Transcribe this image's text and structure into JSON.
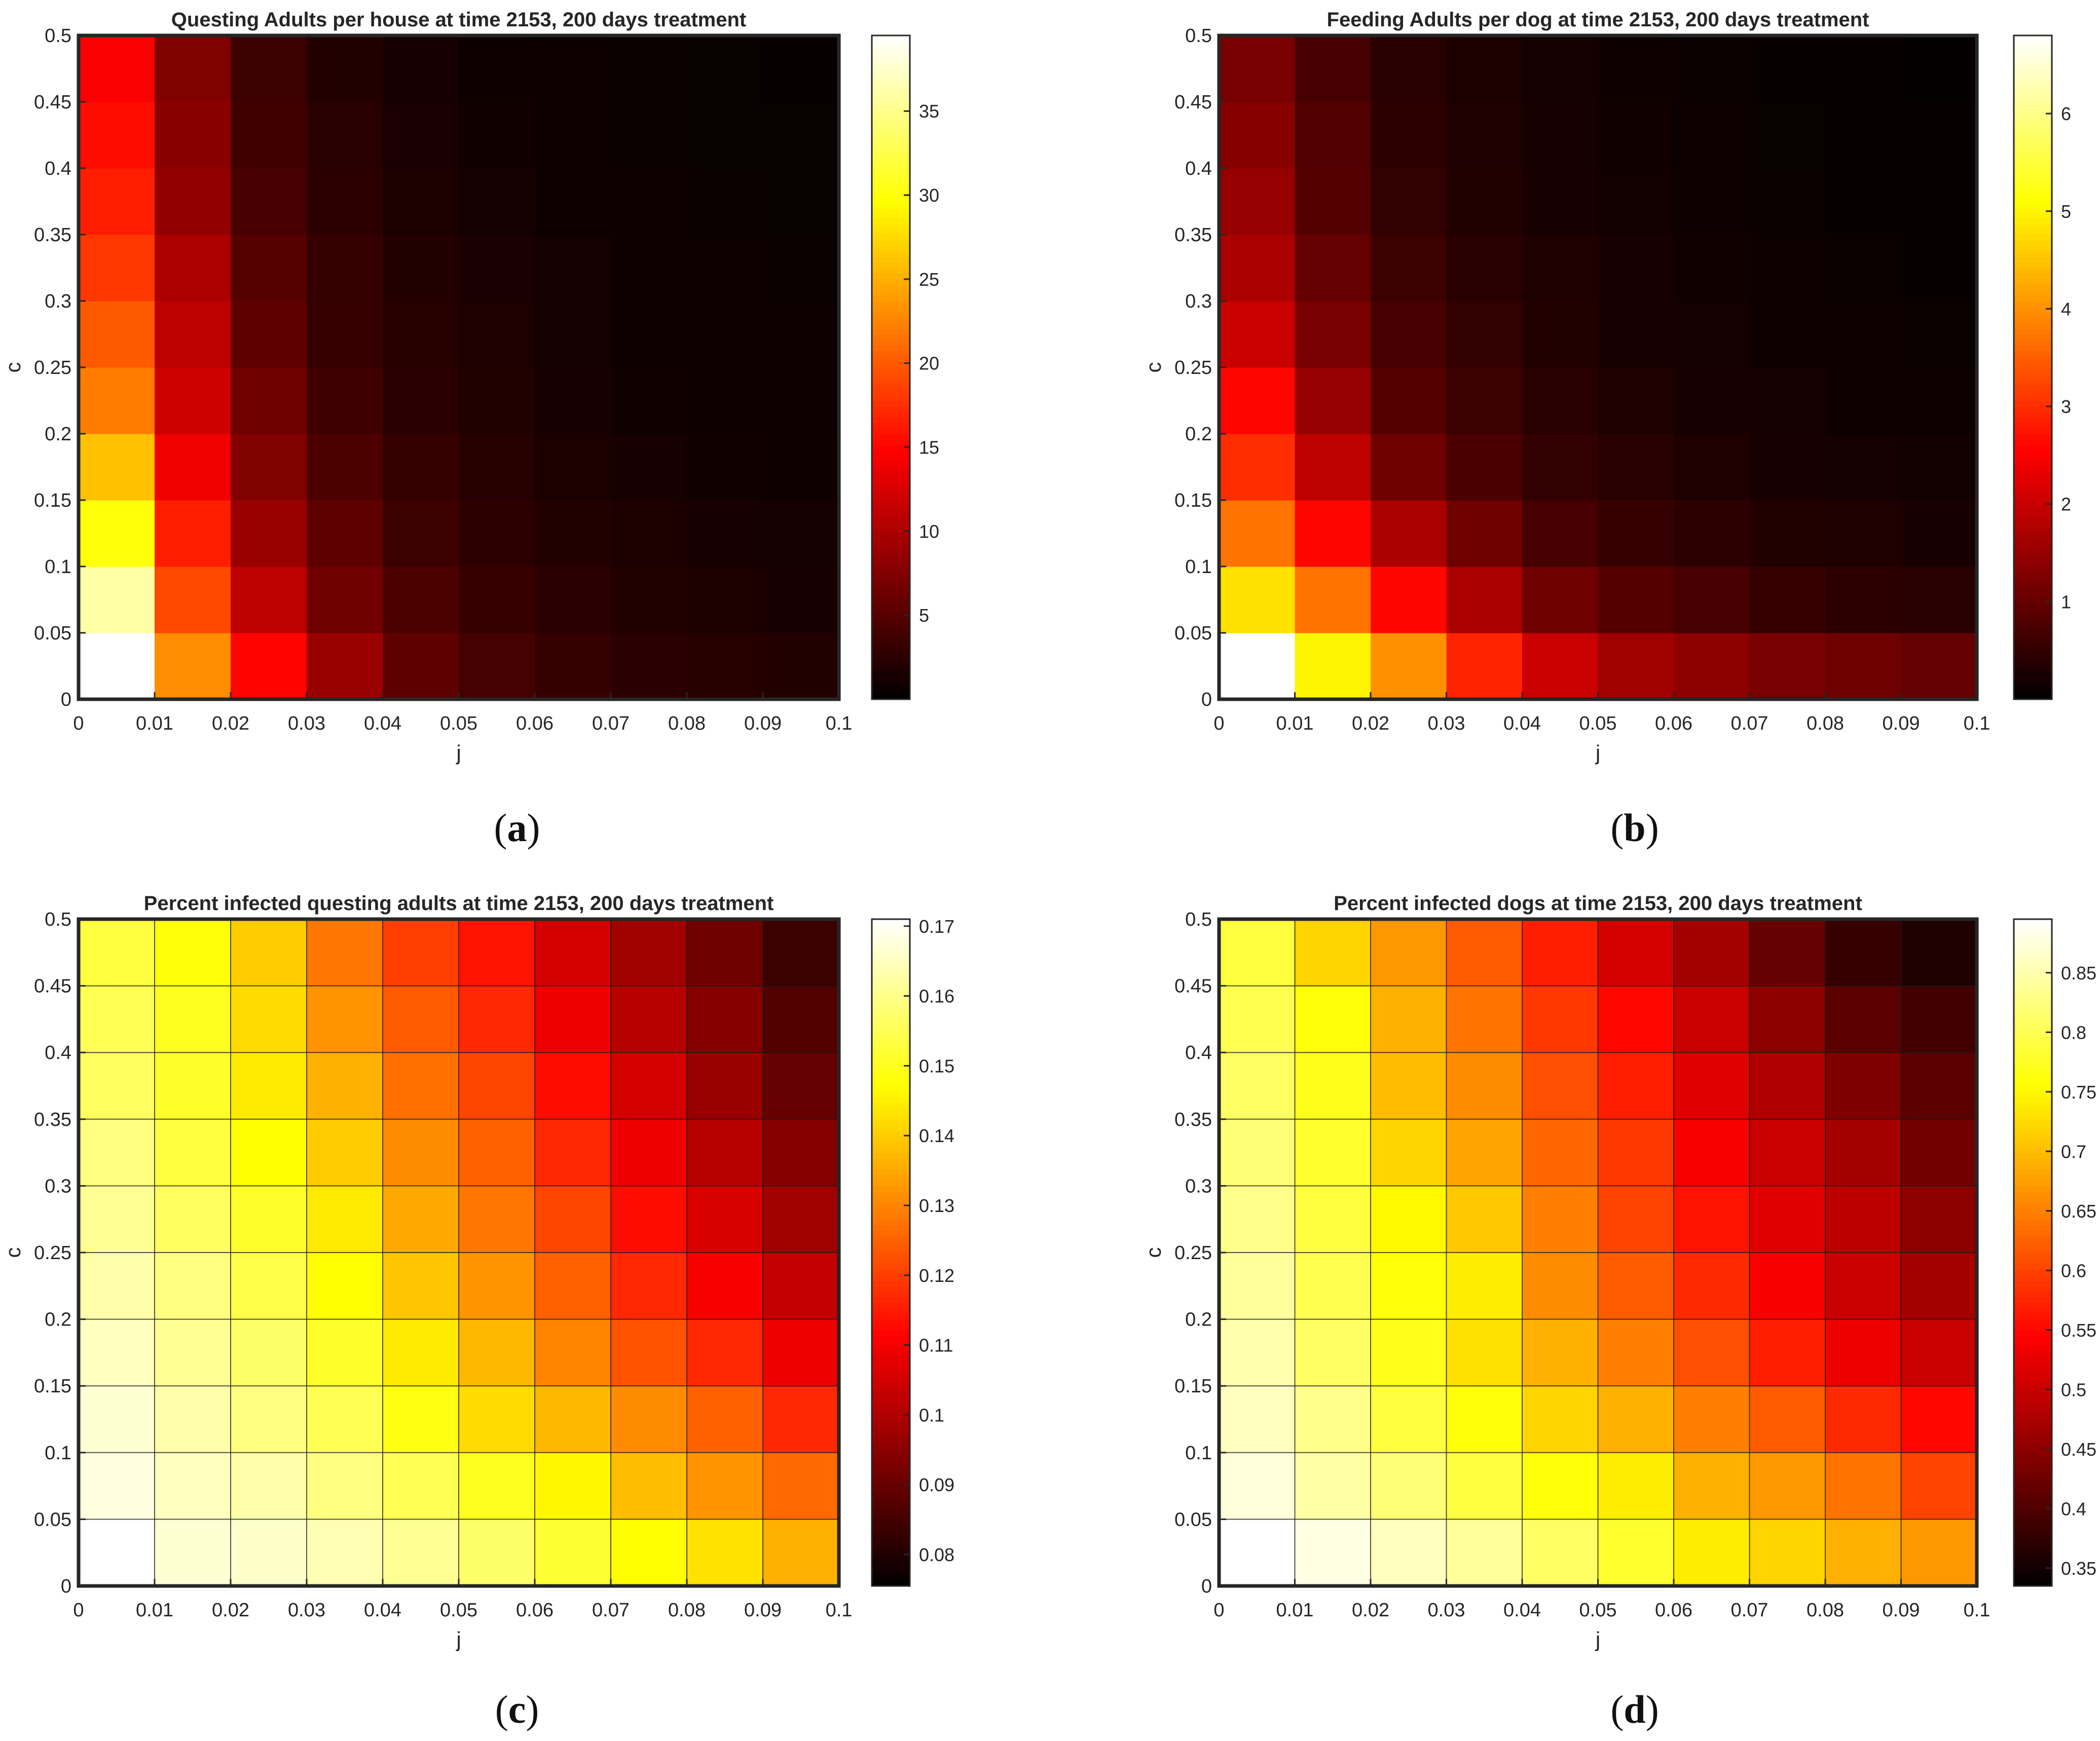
{
  "chart_data": [
    {
      "type": "heatmap",
      "panel_label": "a",
      "title": "Questing Adults per house at time 2153, 200 days treatment",
      "xlabel": "j",
      "ylabel": "c",
      "x_ticks": [
        "0",
        "0.01",
        "0.02",
        "0.03",
        "0.04",
        "0.05",
        "0.06",
        "0.07",
        "0.08",
        "0.09",
        "0.1"
      ],
      "y_ticks": [
        "0",
        "0.05",
        "0.1",
        "0.15",
        "0.2",
        "0.25",
        "0.3",
        "0.35",
        "0.4",
        "0.45",
        "0.5"
      ],
      "xlim": [
        0,
        0.1
      ],
      "ylim": [
        0,
        0.5
      ],
      "colormap": "hot",
      "clim": [
        0,
        39.5
      ],
      "colorbar_ticks": [
        5,
        10,
        15,
        20,
        25,
        30,
        35
      ],
      "colorbar_ticklabels": [
        "5",
        "10",
        "15",
        "20",
        "25",
        "30",
        "35"
      ],
      "gridlines": false,
      "values": [
        [
          39.5,
          23.0,
          15.0,
          9.0,
          5.5,
          4.0,
          3.0,
          2.5,
          2.2,
          2.0
        ],
        [
          36.0,
          19.0,
          11.0,
          6.5,
          4.5,
          3.2,
          2.5,
          2.0,
          1.6,
          1.4
        ],
        [
          30.0,
          16.5,
          9.0,
          5.5,
          3.5,
          2.6,
          2.0,
          1.6,
          1.3,
          1.1
        ],
        [
          26.0,
          14.0,
          7.5,
          4.5,
          3.0,
          2.2,
          1.6,
          1.3,
          1.0,
          0.9
        ],
        [
          22.0,
          12.0,
          6.5,
          3.6,
          2.5,
          1.9,
          1.4,
          1.0,
          0.9,
          0.8
        ],
        [
          20.0,
          11.0,
          5.5,
          3.2,
          2.2,
          1.7,
          1.2,
          0.9,
          0.8,
          0.7
        ],
        [
          18.0,
          10.0,
          5.0,
          3.0,
          2.0,
          1.5,
          1.1,
          0.9,
          0.7,
          0.6
        ],
        [
          16.5,
          8.5,
          4.2,
          2.6,
          1.6,
          1.2,
          0.9,
          0.7,
          0.6,
          0.5
        ],
        [
          15.5,
          8.0,
          3.8,
          2.3,
          1.5,
          1.0,
          0.8,
          0.6,
          0.5,
          0.5
        ],
        [
          14.5,
          7.5,
          3.5,
          2.0,
          1.3,
          0.9,
          0.7,
          0.6,
          0.5,
          0.4
        ]
      ]
    },
    {
      "type": "heatmap",
      "panel_label": "b",
      "title": "Feeding Adults per dog at time 2153, 200 days treatment",
      "xlabel": "j",
      "ylabel": "c",
      "x_ticks": [
        "0",
        "0.01",
        "0.02",
        "0.03",
        "0.04",
        "0.05",
        "0.06",
        "0.07",
        "0.08",
        "0.09",
        "0.1"
      ],
      "y_ticks": [
        "0",
        "0.05",
        "0.1",
        "0.15",
        "0.2",
        "0.25",
        "0.3",
        "0.35",
        "0.4",
        "0.45",
        "0.5"
      ],
      "xlim": [
        0,
        0.1
      ],
      "ylim": [
        0,
        0.5
      ],
      "colormap": "hot",
      "clim": [
        0,
        6.8
      ],
      "colorbar_ticks": [
        1,
        2,
        3,
        4,
        5,
        6
      ],
      "colorbar_ticklabels": [
        "1",
        "2",
        "3",
        "4",
        "5",
        "6"
      ],
      "gridlines": false,
      "values": [
        [
          6.8,
          5.0,
          4.0,
          2.9,
          2.0,
          1.6,
          1.4,
          1.2,
          1.1,
          1.0
        ],
        [
          4.8,
          3.7,
          2.6,
          1.7,
          1.1,
          0.85,
          0.7,
          0.55,
          0.45,
          0.4
        ],
        [
          3.7,
          2.6,
          1.7,
          1.1,
          0.7,
          0.55,
          0.45,
          0.35,
          0.3,
          0.25
        ],
        [
          3.0,
          1.9,
          1.1,
          0.75,
          0.5,
          0.4,
          0.3,
          0.25,
          0.2,
          0.18
        ],
        [
          2.6,
          1.5,
          0.85,
          0.6,
          0.4,
          0.3,
          0.25,
          0.2,
          0.15,
          0.12
        ],
        [
          2.0,
          1.2,
          0.7,
          0.5,
          0.35,
          0.25,
          0.2,
          0.15,
          0.12,
          0.1
        ],
        [
          1.7,
          1.0,
          0.6,
          0.4,
          0.3,
          0.22,
          0.17,
          0.13,
          0.1,
          0.08
        ],
        [
          1.5,
          0.85,
          0.5,
          0.35,
          0.25,
          0.18,
          0.14,
          0.1,
          0.08,
          0.07
        ],
        [
          1.35,
          0.8,
          0.45,
          0.3,
          0.22,
          0.16,
          0.12,
          0.09,
          0.07,
          0.06
        ],
        [
          1.2,
          0.7,
          0.4,
          0.28,
          0.2,
          0.15,
          0.11,
          0.08,
          0.06,
          0.05
        ]
      ]
    },
    {
      "type": "heatmap",
      "panel_label": "c",
      "title": "Percent infected questing adults at time 2153, 200 days treatment",
      "xlabel": "j",
      "ylabel": "c",
      "x_ticks": [
        "0",
        "0.01",
        "0.02",
        "0.03",
        "0.04",
        "0.05",
        "0.06",
        "0.07",
        "0.08",
        "0.09",
        "0.1"
      ],
      "y_ticks": [
        "0",
        "0.05",
        "0.1",
        "0.15",
        "0.2",
        "0.25",
        "0.3",
        "0.35",
        "0.4",
        "0.45",
        "0.5"
      ],
      "xlim": [
        0,
        0.1
      ],
      "ylim": [
        0,
        0.5
      ],
      "colormap": "hot",
      "clim": [
        0.0755,
        0.171
      ],
      "colorbar_ticks": [
        0.08,
        0.09,
        0.1,
        0.11,
        0.12,
        0.13,
        0.14,
        0.15,
        0.16,
        0.17
      ],
      "colorbar_ticklabels": [
        "0.08",
        "0.09",
        "0.1",
        "0.11",
        "0.12",
        "0.13",
        "0.14",
        "0.15",
        "0.16",
        "0.17"
      ],
      "gridlines": true,
      "values": [
        [
          0.171,
          0.167,
          0.166,
          0.164,
          0.161,
          0.157,
          0.152,
          0.147,
          0.143,
          0.136
        ],
        [
          0.168,
          0.165,
          0.163,
          0.159,
          0.155,
          0.15,
          0.146,
          0.138,
          0.132,
          0.126
        ],
        [
          0.167,
          0.163,
          0.159,
          0.155,
          0.149,
          0.142,
          0.137,
          0.131,
          0.125,
          0.117
        ],
        [
          0.165,
          0.161,
          0.157,
          0.151,
          0.144,
          0.137,
          0.13,
          0.123,
          0.117,
          0.109
        ],
        [
          0.163,
          0.159,
          0.154,
          0.147,
          0.139,
          0.132,
          0.125,
          0.117,
          0.11,
          0.103
        ],
        [
          0.161,
          0.156,
          0.151,
          0.144,
          0.135,
          0.128,
          0.121,
          0.113,
          0.106,
          0.098
        ],
        [
          0.159,
          0.153,
          0.147,
          0.14,
          0.131,
          0.125,
          0.117,
          0.109,
          0.101,
          0.094
        ],
        [
          0.156,
          0.151,
          0.144,
          0.136,
          0.127,
          0.121,
          0.113,
          0.105,
          0.097,
          0.09
        ],
        [
          0.155,
          0.15,
          0.142,
          0.132,
          0.124,
          0.117,
          0.109,
          0.101,
          0.094,
          0.087
        ],
        [
          0.153,
          0.148,
          0.14,
          0.128,
          0.12,
          0.114,
          0.105,
          0.098,
          0.091,
          0.084
        ]
      ]
    },
    {
      "type": "heatmap",
      "panel_label": "d",
      "title": "Percent infected dogs at time 2153, 200 days treatment",
      "xlabel": "j",
      "ylabel": "c",
      "x_ticks": [
        "0",
        "0.01",
        "0.02",
        "0.03",
        "0.04",
        "0.05",
        "0.06",
        "0.07",
        "0.08",
        "0.09",
        "0.1"
      ],
      "y_ticks": [
        "0",
        "0.05",
        "0.1",
        "0.15",
        "0.2",
        "0.25",
        "0.3",
        "0.35",
        "0.4",
        "0.45",
        "0.5"
      ],
      "xlim": [
        0,
        0.1
      ],
      "ylim": [
        0,
        0.5
      ],
      "colormap": "hot",
      "clim": [
        0.335,
        0.895
      ],
      "colorbar_ticks": [
        0.35,
        0.4,
        0.45,
        0.5,
        0.55,
        0.6,
        0.65,
        0.7,
        0.75,
        0.8,
        0.85
      ],
      "colorbar_ticklabels": [
        "0.35",
        "0.4",
        "0.45",
        "0.5",
        "0.55",
        "0.6",
        "0.65",
        "0.7",
        "0.75",
        "0.8",
        "0.85"
      ],
      "gridlines": true,
      "values": [
        [
          0.895,
          0.88,
          0.86,
          0.84,
          0.81,
          0.78,
          0.74,
          0.72,
          0.69,
          0.67
        ],
        [
          0.875,
          0.845,
          0.82,
          0.79,
          0.76,
          0.74,
          0.69,
          0.67,
          0.64,
          0.6
        ],
        [
          0.86,
          0.83,
          0.79,
          0.76,
          0.72,
          0.69,
          0.65,
          0.62,
          0.58,
          0.55
        ],
        [
          0.85,
          0.81,
          0.77,
          0.73,
          0.69,
          0.65,
          0.61,
          0.57,
          0.53,
          0.5
        ],
        [
          0.84,
          0.8,
          0.76,
          0.74,
          0.66,
          0.62,
          0.58,
          0.54,
          0.5,
          0.47
        ],
        [
          0.83,
          0.79,
          0.75,
          0.71,
          0.65,
          0.6,
          0.56,
          0.52,
          0.49,
          0.45
        ],
        [
          0.82,
          0.78,
          0.72,
          0.68,
          0.63,
          0.59,
          0.54,
          0.5,
          0.47,
          0.43
        ],
        [
          0.81,
          0.77,
          0.7,
          0.66,
          0.61,
          0.57,
          0.52,
          0.48,
          0.44,
          0.41
        ],
        [
          0.8,
          0.76,
          0.69,
          0.64,
          0.59,
          0.55,
          0.5,
          0.45,
          0.41,
          0.39
        ],
        [
          0.79,
          0.72,
          0.67,
          0.62,
          0.57,
          0.51,
          0.47,
          0.42,
          0.38,
          0.36
        ]
      ]
    }
  ]
}
